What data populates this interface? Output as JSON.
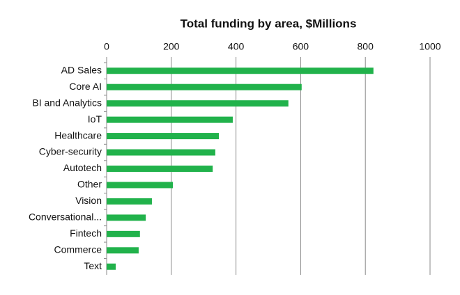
{
  "chart_data": {
    "type": "bar",
    "orientation": "horizontal",
    "title": "Total funding by area, $Millions",
    "categories": [
      "AD Sales",
      "Core AI",
      "BI and Analytics",
      "IoT",
      "Healthcare",
      "Cyber-security",
      "Autotech",
      "Other",
      "Vision",
      "Conversational...",
      "Fintech",
      "Commerce",
      "Text"
    ],
    "values": [
      825,
      603,
      562,
      390,
      347,
      336,
      328,
      205,
      140,
      121,
      103,
      99,
      28
    ],
    "color": "#21b24b",
    "xlim": [
      0,
      1000
    ],
    "xticks": [
      0,
      200,
      400,
      600,
      800,
      1000
    ],
    "grid": true
  }
}
